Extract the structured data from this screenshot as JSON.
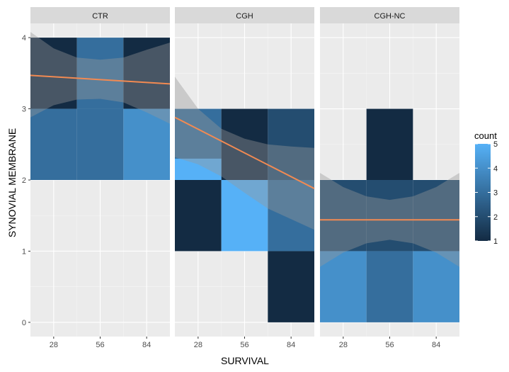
{
  "chart_data": {
    "type": "heatmap",
    "xlabel": "SURVIVAL",
    "ylabel": "SYNOVIAL MEMBRANE",
    "x_ticks": [
      28,
      56,
      84
    ],
    "y_ticks": [
      0,
      1,
      2,
      3,
      4
    ],
    "xlim": [
      14,
      98
    ],
    "ylim": [
      -0.2,
      4.2
    ],
    "bin_width": 28,
    "legend": {
      "title": "count",
      "min": 1,
      "max": 5,
      "ticks": [
        1,
        2,
        3,
        4,
        5
      ],
      "low_color": "#132B43",
      "high_color": "#56B1F7"
    },
    "trend_color": "#F28A52",
    "panels": [
      {
        "label": "CTR",
        "tiles": [
          {
            "x": 28,
            "y": 3.5,
            "h": 1,
            "count": 1
          },
          {
            "x": 56,
            "y": 3.5,
            "h": 1,
            "count": 3
          },
          {
            "x": 84,
            "y": 3.5,
            "h": 1,
            "count": 1
          },
          {
            "x": 28,
            "y": 2.5,
            "h": 1,
            "count": 3
          },
          {
            "x": 56,
            "y": 2.5,
            "h": 1,
            "count": 3
          },
          {
            "x": 84,
            "y": 2.5,
            "h": 1,
            "count": 4
          }
        ],
        "trend": {
          "x": [
            14,
            98
          ],
          "y": [
            3.47,
            3.35
          ]
        },
        "band": {
          "x": [
            14,
            28,
            42,
            56,
            70,
            84,
            98
          ],
          "upper": [
            4.08,
            3.85,
            3.72,
            3.69,
            3.72,
            3.83,
            3.93
          ],
          "lower": [
            2.88,
            3.05,
            3.13,
            3.14,
            3.09,
            2.95,
            2.79
          ]
        }
      },
      {
        "label": "CGH",
        "tiles": [
          {
            "x": 28,
            "y": 2.5,
            "h": 1,
            "count": 3
          },
          {
            "x": 56,
            "y": 2.5,
            "h": 1,
            "count": 1
          },
          {
            "x": 84,
            "y": 2.5,
            "h": 1,
            "count": 2
          },
          {
            "x": 28,
            "y": 2.15,
            "h": 0.3,
            "count": 5
          },
          {
            "x": 28,
            "y": 1.5,
            "h": 1,
            "count": 1
          },
          {
            "x": 56,
            "y": 1.5,
            "h": 1,
            "count": 5
          },
          {
            "x": 84,
            "y": 1.5,
            "h": 1,
            "count": 3
          },
          {
            "x": 84,
            "y": 0.5,
            "h": 1,
            "count": 1
          }
        ],
        "trend": {
          "x": [
            14,
            98
          ],
          "y": [
            2.88,
            1.88
          ]
        },
        "band": {
          "x": [
            14,
            28,
            42,
            56,
            70,
            84,
            98
          ],
          "upper": [
            3.45,
            3.0,
            2.72,
            2.58,
            2.5,
            2.47,
            2.45
          ],
          "lower": [
            2.32,
            2.22,
            2.05,
            1.82,
            1.6,
            1.45,
            1.3
          ]
        }
      },
      {
        "label": "CGH-NC",
        "tiles": [
          {
            "x": 56,
            "y": 2.5,
            "h": 1,
            "count": 1
          },
          {
            "x": 28,
            "y": 1.5,
            "h": 1,
            "count": 2
          },
          {
            "x": 56,
            "y": 1.5,
            "h": 1,
            "count": 2
          },
          {
            "x": 84,
            "y": 1.5,
            "h": 1,
            "count": 2
          },
          {
            "x": 28,
            "y": 0.5,
            "h": 1,
            "count": 4
          },
          {
            "x": 56,
            "y": 0.5,
            "h": 1,
            "count": 3
          },
          {
            "x": 84,
            "y": 0.5,
            "h": 1,
            "count": 4
          }
        ],
        "trend": {
          "x": [
            14,
            98
          ],
          "y": [
            1.44,
            1.44
          ]
        },
        "band": {
          "x": [
            14,
            28,
            42,
            56,
            70,
            84,
            98
          ],
          "upper": [
            2.1,
            1.9,
            1.77,
            1.72,
            1.77,
            1.9,
            2.1
          ],
          "lower": [
            0.78,
            0.98,
            1.11,
            1.16,
            1.11,
            0.98,
            0.78
          ]
        }
      }
    ]
  }
}
